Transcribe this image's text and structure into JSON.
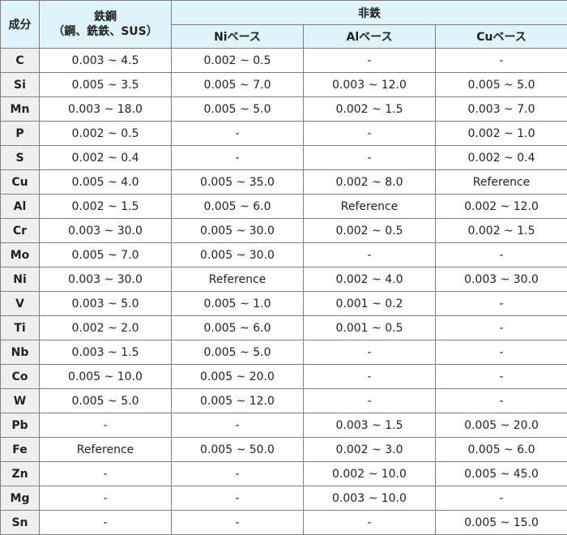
{
  "header": {
    "element": "成分",
    "steel_line1": "鉄鋼",
    "steel_line2": "（鋼、銑鉄、SUS）",
    "nonferrous": "非鉄",
    "ni_base": "Niベース",
    "al_base": "Alベース",
    "cu_base": "Cuベース"
  },
  "rows": [
    {
      "el": "C",
      "steel": "0.003 ~ 4.5",
      "ni": "0.002 ~ 0.5",
      "al": "-",
      "cu": "-"
    },
    {
      "el": "Si",
      "steel": "0.005 ~ 3.5",
      "ni": "0.005 ~ 7.0",
      "al": "0.003 ~ 12.0",
      "cu": "0.005 ~ 5.0"
    },
    {
      "el": "Mn",
      "steel": "0.003 ~ 18.0",
      "ni": "0.005 ~ 5.0",
      "al": "0.002 ~ 1.5",
      "cu": "0.003 ~ 7.0"
    },
    {
      "el": "P",
      "steel": "0.002 ~ 0.5",
      "ni": "-",
      "al": "-",
      "cu": "0.002 ~ 1.0"
    },
    {
      "el": "S",
      "steel": "0.002 ~ 0.4",
      "ni": "-",
      "al": "-",
      "cu": "0.002 ~ 0.4"
    },
    {
      "el": "Cu",
      "steel": "0.005 ~ 4.0",
      "ni": "0.005 ~ 35.0",
      "al": "0.002 ~ 8.0",
      "cu": "Reference"
    },
    {
      "el": "Al",
      "steel": "0.002 ~ 1.5",
      "ni": "0.005 ~ 6.0",
      "al": "Reference",
      "cu": "0.002 ~ 12.0"
    },
    {
      "el": "Cr",
      "steel": "0.003 ~ 30.0",
      "ni": "0.005 ~ 30.0",
      "al": "0.002 ~ 0.5",
      "cu": "0.002 ~ 1.5"
    },
    {
      "el": "Mo",
      "steel": "0.005 ~ 7.0",
      "ni": "0.005 ~ 30.0",
      "al": "-",
      "cu": "-"
    },
    {
      "el": "Ni",
      "steel": "0.003 ~ 30.0",
      "ni": "Reference",
      "al": "0.002 ~ 4.0",
      "cu": "0.003 ~ 30.0"
    },
    {
      "el": "V",
      "steel": "0.003 ~ 5.0",
      "ni": "0.005 ~ 1.0",
      "al": "0.001 ~ 0.2",
      "cu": "-"
    },
    {
      "el": "Ti",
      "steel": "0.002 ~ 2.0",
      "ni": "0.005 ~ 6.0",
      "al": "0.001 ~ 0.5",
      "cu": "-"
    },
    {
      "el": "Nb",
      "steel": "0.003 ~ 1.5",
      "ni": "0.005 ~ 5.0",
      "al": "-",
      "cu": "-"
    },
    {
      "el": "Co",
      "steel": "0.005 ~ 10.0",
      "ni": "0.005 ~ 20.0",
      "al": "-",
      "cu": "-"
    },
    {
      "el": "W",
      "steel": "0.005 ~ 5.0",
      "ni": "0.005 ~ 12.0",
      "al": "-",
      "cu": "-"
    },
    {
      "el": "Pb",
      "steel": "-",
      "ni": "-",
      "al": "0.003 ~ 1.5",
      "cu": "0.005 ~ 20.0"
    },
    {
      "el": "Fe",
      "steel": "Reference",
      "ni": "0.005 ~ 50.0",
      "al": "0.002 ~ 3.0",
      "cu": "0.005 ~ 6.0"
    },
    {
      "el": "Zn",
      "steel": "-",
      "ni": "-",
      "al": "0.002 ~ 10.0",
      "cu": "0.005 ~ 45.0"
    },
    {
      "el": "Mg",
      "steel": "-",
      "ni": "-",
      "al": "0.003 ~ 10.0",
      "cu": "-"
    },
    {
      "el": "Sn",
      "steel": "-",
      "ni": "-",
      "al": "-",
      "cu": "0.005 ~ 15.0"
    }
  ]
}
